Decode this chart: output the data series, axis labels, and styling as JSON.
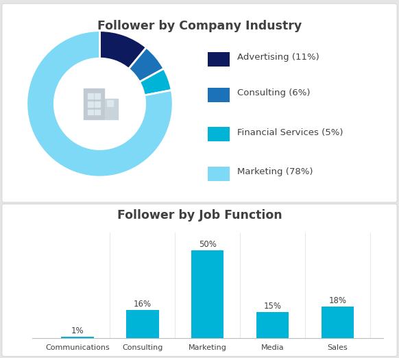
{
  "pie_title": "Follower by Company Industry",
  "pie_labels": [
    "Advertising (11%)",
    "Consulting (6%)",
    "Financial Services (5%)",
    "Marketing (78%)"
  ],
  "pie_values": [
    11,
    6,
    5,
    78
  ],
  "pie_colors": [
    "#0d1b5e",
    "#1b72b8",
    "#00b4d8",
    "#7dd9f5"
  ],
  "pie_startangle": 90,
  "bar_title": "Follower by Job Function",
  "bar_categories": [
    "Communications",
    "Consulting",
    "Marketing",
    "Media",
    "Sales"
  ],
  "bar_values": [
    1,
    16,
    50,
    15,
    18
  ],
  "bar_color": "#00b4d8",
  "bar_labels": [
    "1%",
    "16%",
    "50%",
    "15%",
    "18%"
  ],
  "bg_color": "#e5e5e5",
  "panel_color": "#ffffff",
  "text_color": "#404040",
  "legend_fontsize": 9.5,
  "title_fontsize": 12.5
}
